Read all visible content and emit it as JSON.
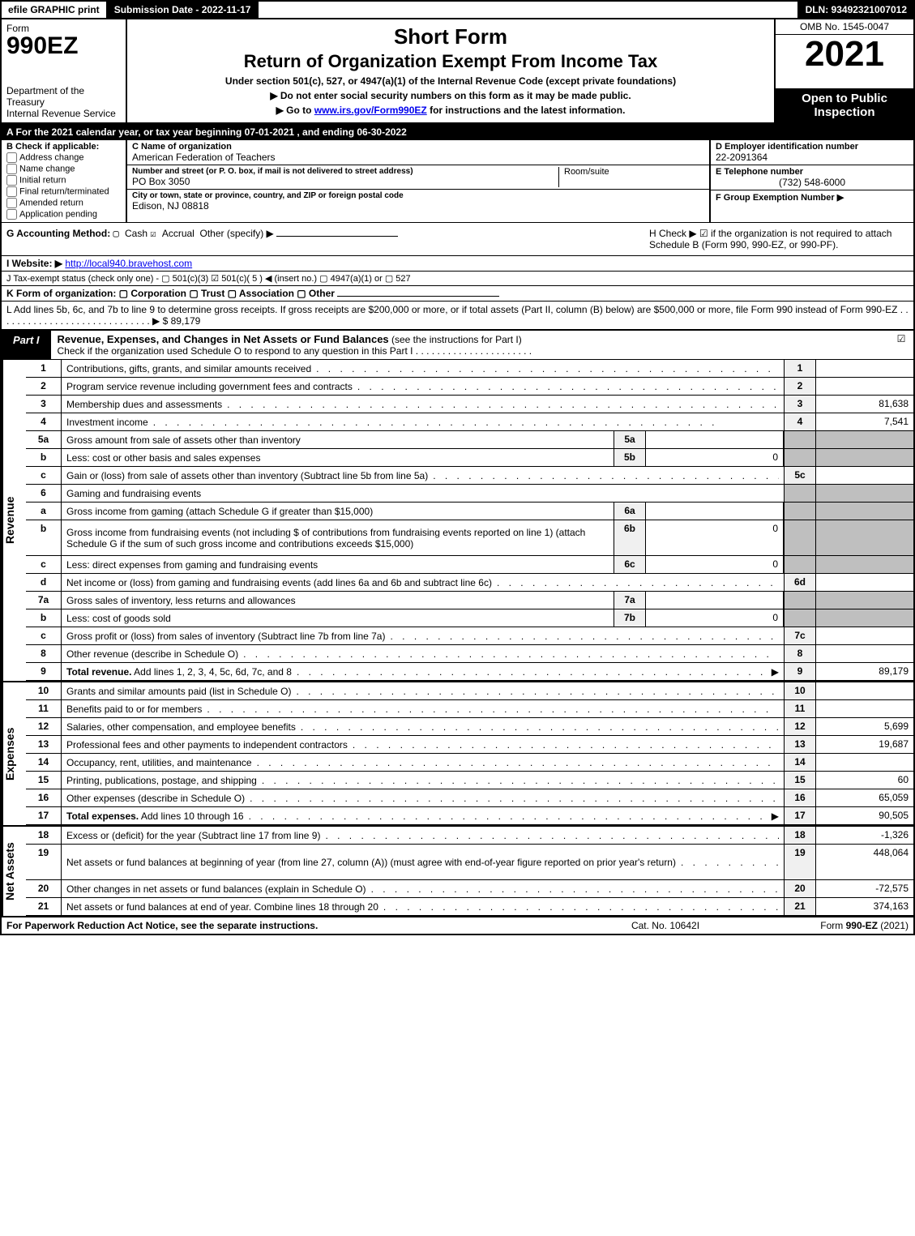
{
  "topbar": {
    "efile": "efile GRAPHIC print",
    "submission": "Submission Date - 2022-11-17",
    "dln": "DLN: 93492321007012"
  },
  "header": {
    "form_word": "Form",
    "form_no": "990EZ",
    "dept": "Department of the Treasury\nInternal Revenue Service",
    "title1": "Short Form",
    "title2": "Return of Organization Exempt From Income Tax",
    "subtitle": "Under section 501(c), 527, or 4947(a)(1) of the Internal Revenue Code (except private foundations)",
    "note1": "▶ Do not enter social security numbers on this form as it may be made public.",
    "note2_pre": "▶ Go to ",
    "note2_link": "www.irs.gov/Form990EZ",
    "note2_post": " for instructions and the latest information.",
    "omb": "OMB No. 1545-0047",
    "year": "2021",
    "inspect": "Open to Public Inspection"
  },
  "lineA": "A  For the 2021 calendar year, or tax year beginning 07-01-2021 , and ending 06-30-2022",
  "sectionB": {
    "header": "B  Check if applicable:",
    "opts": [
      "Address change",
      "Name change",
      "Initial return",
      "Final return/terminated",
      "Amended return",
      "Application pending"
    ]
  },
  "sectionC": {
    "name_lbl": "C Name of organization",
    "name": "American Federation of Teachers",
    "street_lbl": "Number and street (or P. O. box, if mail is not delivered to street address)",
    "street": "PO Box 3050",
    "room_lbl": "Room/suite",
    "city_lbl": "City or town, state or province, country, and ZIP or foreign postal code",
    "city": "Edison, NJ  08818"
  },
  "sectionD": {
    "ein_lbl": "D Employer identification number",
    "ein": "22-2091364",
    "phone_lbl": "E Telephone number",
    "phone": "(732) 548-6000",
    "group_lbl": "F Group Exemption Number   ▶"
  },
  "lineG": {
    "label": "G Accounting Method:",
    "cash": "Cash",
    "accrual": "Accrual",
    "other": "Other (specify) ▶"
  },
  "lineH": "H  Check ▶ ☑ if the organization is not required to attach Schedule B (Form 990, 990-EZ, or 990-PF).",
  "lineI": {
    "label": "I Website: ▶",
    "url": "http://local940.bravehost.com"
  },
  "lineJ": "J Tax-exempt status (check only one) -  ▢ 501(c)(3)  ☑ 501(c)( 5 ) ◀ (insert no.)  ▢ 4947(a)(1) or  ▢ 527",
  "lineK": "K Form of organization:   ▢ Corporation   ▢ Trust   ▢ Association   ▢ Other",
  "lineL": {
    "text": "L Add lines 5b, 6c, and 7b to line 9 to determine gross receipts. If gross receipts are $200,000 or more, or if total assets (Part II, column (B) below) are $500,000 or more, file Form 990 instead of Form 990-EZ  .  .  .  .  .  .  .  .  .  .  .  .  .  .  .  .  .  .  .  .  .  .  .  .  .  .  .  .  .  ▶ $",
    "amount": "89,179"
  },
  "partI": {
    "badge": "Part I",
    "title": "Revenue, Expenses, and Changes in Net Assets or Fund Balances",
    "title_tail": " (see the instructions for Part I)",
    "sub": "Check if the organization used Schedule O to respond to any question in this Part I  .  .  .  .  .  .  .  .  .  .  .  .  .  .  .  .  .  .  .  .  .  ."
  },
  "sections": {
    "revenue_label": "Revenue",
    "expenses_label": "Expenses",
    "netassets_label": "Net Assets"
  },
  "rows": [
    {
      "n": "1",
      "d": "Contributions, gifts, grants, and similar amounts received",
      "rn": "1",
      "rv": ""
    },
    {
      "n": "2",
      "d": "Program service revenue including government fees and contracts",
      "rn": "2",
      "rv": ""
    },
    {
      "n": "3",
      "d": "Membership dues and assessments",
      "rn": "3",
      "rv": "81,638"
    },
    {
      "n": "4",
      "d": "Investment income",
      "rn": "4",
      "rv": "7,541"
    },
    {
      "n": "5a",
      "d": "Gross amount from sale of assets other than inventory",
      "sn": "5a",
      "sv": "",
      "shade_rt": true
    },
    {
      "n": "b",
      "d": "Less: cost or other basis and sales expenses",
      "sn": "5b",
      "sv": "0",
      "shade_rt": true
    },
    {
      "n": "c",
      "d": "Gain or (loss) from sale of assets other than inventory (Subtract line 5b from line 5a)",
      "rn": "5c",
      "rv": ""
    },
    {
      "n": "6",
      "d": "Gaming and fundraising events",
      "shade_rt": true,
      "no_dots": true
    },
    {
      "n": "a",
      "d": "Gross income from gaming (attach Schedule G if greater than $15,000)",
      "sn": "6a",
      "sv": "",
      "shade_rt": true
    },
    {
      "n": "b",
      "d": "Gross income from fundraising events (not including $                      of contributions from fundraising events reported on line 1) (attach Schedule G if the sum of such gross income and contributions exceeds $15,000)",
      "sn": "6b",
      "sv": "0",
      "shade_rt": true,
      "tall": true
    },
    {
      "n": "c",
      "d": "Less: direct expenses from gaming and fundraising events",
      "sn": "6c",
      "sv": "0",
      "shade_rt": true
    },
    {
      "n": "d",
      "d": "Net income or (loss) from gaming and fundraising events (add lines 6a and 6b and subtract line 6c)",
      "rn": "6d",
      "rv": ""
    },
    {
      "n": "7a",
      "d": "Gross sales of inventory, less returns and allowances",
      "sn": "7a",
      "sv": "",
      "shade_rt": true
    },
    {
      "n": "b",
      "d": "Less: cost of goods sold",
      "sn": "7b",
      "sv": "0",
      "shade_rt": true
    },
    {
      "n": "c",
      "d": "Gross profit or (loss) from sales of inventory (Subtract line 7b from line 7a)",
      "rn": "7c",
      "rv": ""
    },
    {
      "n": "8",
      "d": "Other revenue (describe in Schedule O)",
      "rn": "8",
      "rv": ""
    },
    {
      "n": "9",
      "d": "Total revenue. Add lines 1, 2, 3, 4, 5c, 6d, 7c, and 8",
      "rn": "9",
      "rv": "89,179",
      "bold": true,
      "arrow": true
    }
  ],
  "exp_rows": [
    {
      "n": "10",
      "d": "Grants and similar amounts paid (list in Schedule O)",
      "rn": "10",
      "rv": ""
    },
    {
      "n": "11",
      "d": "Benefits paid to or for members",
      "rn": "11",
      "rv": ""
    },
    {
      "n": "12",
      "d": "Salaries, other compensation, and employee benefits",
      "rn": "12",
      "rv": "5,699"
    },
    {
      "n": "13",
      "d": "Professional fees and other payments to independent contractors",
      "rn": "13",
      "rv": "19,687"
    },
    {
      "n": "14",
      "d": "Occupancy, rent, utilities, and maintenance",
      "rn": "14",
      "rv": ""
    },
    {
      "n": "15",
      "d": "Printing, publications, postage, and shipping",
      "rn": "15",
      "rv": "60"
    },
    {
      "n": "16",
      "d": "Other expenses (describe in Schedule O)",
      "rn": "16",
      "rv": "65,059"
    },
    {
      "n": "17",
      "d": "Total expenses. Add lines 10 through 16",
      "rn": "17",
      "rv": "90,505",
      "bold": true,
      "arrow": true
    }
  ],
  "na_rows": [
    {
      "n": "18",
      "d": "Excess or (deficit) for the year (Subtract line 17 from line 9)",
      "rn": "18",
      "rv": "-1,326"
    },
    {
      "n": "19",
      "d": "Net assets or fund balances at beginning of year (from line 27, column (A)) (must agree with end-of-year figure reported on prior year's return)",
      "rn": "19",
      "rv": "448,064",
      "tall": true
    },
    {
      "n": "20",
      "d": "Other changes in net assets or fund balances (explain in Schedule O)",
      "rn": "20",
      "rv": "-72,575"
    },
    {
      "n": "21",
      "d": "Net assets or fund balances at end of year. Combine lines 18 through 20",
      "rn": "21",
      "rv": "374,163"
    }
  ],
  "footer": {
    "left": "For Paperwork Reduction Act Notice, see the separate instructions.",
    "center": "Cat. No. 10642I",
    "right_pre": "Form ",
    "right_form": "990-EZ",
    "right_post": " (2021)"
  },
  "dots": ".  .  .  .  .  .  .  .  .  .  .  .  .  .  .  .  .  .  .  .  .  .  .  .  .  .  .  .  .  .  .  .  .  .  .  .  .  .  .  .  .  .  .  .  .  .  .  ."
}
